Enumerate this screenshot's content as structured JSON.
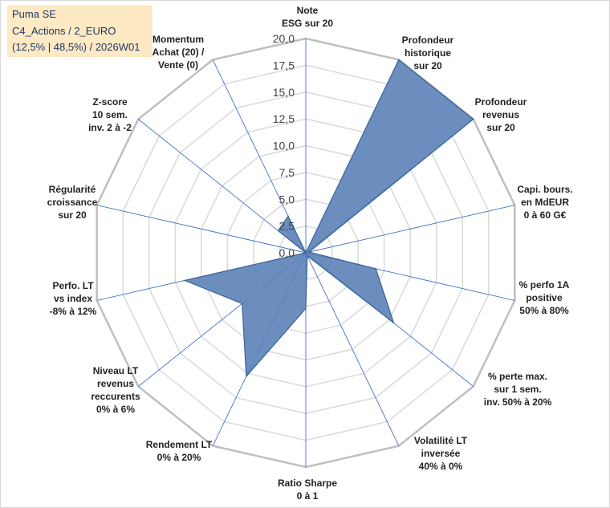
{
  "info_box": {
    "line1": "Puma SE",
    "line2": "C4_Actions / 2_EURO",
    "line3": "(12,5% | 48,5%) / 2026W01"
  },
  "chart_data": {
    "type": "radar",
    "title": "",
    "axes": [
      [
        "Note",
        "ESG sur 20"
      ],
      [
        "Profondeur",
        "historique",
        "sur 20"
      ],
      [
        "Profondeur",
        "revenus",
        "sur 20"
      ],
      [
        "Capi. bours.",
        "en MdEUR",
        "0 à 60 G€"
      ],
      [
        "% perfo 1A",
        "positive",
        "50% à 80%"
      ],
      [
        "% perte max.",
        "sur 1 sem.",
        "inv. 50% à 20%"
      ],
      [
        "Volatilité LT",
        "inversée",
        "40% à 0%"
      ],
      [
        "Ratio Sharpe",
        "0 à 1"
      ],
      [
        "Rendement LT",
        "0% à 20%"
      ],
      [
        "Niveau LT",
        "revenus",
        "reccurents",
        "0% à 6%"
      ],
      [
        "Perfo. LT",
        "vs index",
        "-8% à 12%"
      ],
      [
        "Régularité",
        "croissance",
        "sur 20"
      ],
      [
        "Z-score",
        "10 sem.",
        "inv. 2 à -2"
      ],
      [
        "Momentum",
        "Achat (20) /",
        "Vente (0)"
      ]
    ],
    "values": [
      0,
      20,
      20,
      0.3,
      6.7,
      10.5,
      0.3,
      5.2,
      12.8,
      7.6,
      11.6,
      0,
      3.3,
      3.8
    ],
    "range": [
      0,
      20
    ],
    "ticks": [
      "0,0",
      "2,5",
      "5,0",
      "7,5",
      "10,0",
      "12,5",
      "15,0",
      "17,5",
      "20,0"
    ],
    "grid": true,
    "legend": "none",
    "colors": {
      "fill": "#5b82b7",
      "stroke": "#3a6397",
      "grid": "#d9d9d9",
      "spoke": "#4472c4"
    }
  }
}
